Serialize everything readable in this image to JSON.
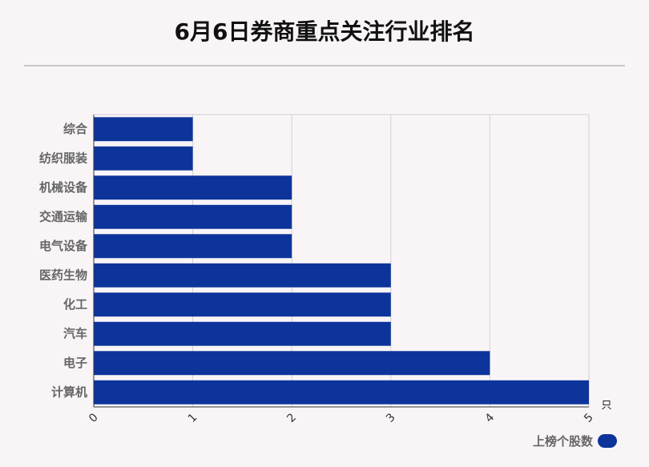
{
  "title": "6月6日券商重点关注行业排名",
  "chart_data": {
    "type": "bar",
    "orientation": "horizontal",
    "title": "6月6日券商重点关注行业排名",
    "categories": [
      "综合",
      "纺织服装",
      "机械设备",
      "交通运输",
      "电气设备",
      "医药生物",
      "化工",
      "汽车",
      "电子",
      "计算机"
    ],
    "series": [
      {
        "name": "上榜个股数",
        "values": [
          1,
          1,
          2,
          2,
          2,
          3,
          3,
          3,
          4,
          5
        ]
      }
    ],
    "x_ticks": [
      "0",
      "1",
      "2",
      "3",
      "4",
      "5"
    ],
    "xlim": [
      0,
      5
    ],
    "x_unit": "只",
    "grid": true,
    "legend_position": "bottom-right",
    "color": "#0d349b"
  }
}
